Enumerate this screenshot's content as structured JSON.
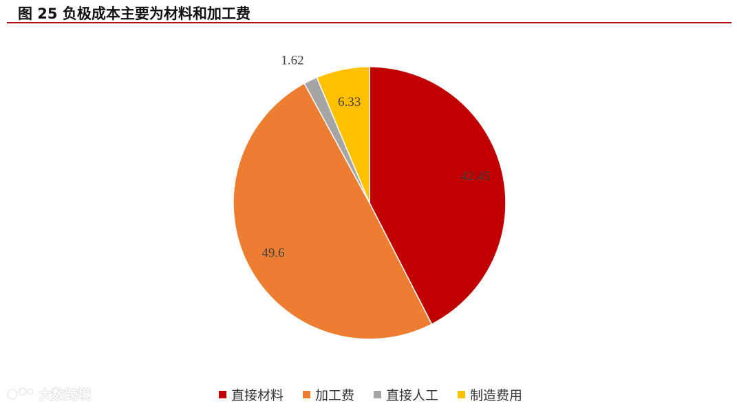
{
  "figure": {
    "title": "图  25 负极成本主要为材料和加工费",
    "rule_color": "#b01016"
  },
  "chart_data": {
    "type": "pie",
    "title": "",
    "start_angle_deg": 0,
    "direction": "clockwise",
    "slices": [
      {
        "name": "直接材料",
        "value": 42.45,
        "label": "42.45",
        "color": "#c00000"
      },
      {
        "name": "加工费",
        "value": 49.6,
        "label": "49.6",
        "color": "#ed7d31"
      },
      {
        "name": "直接人工",
        "value": 1.62,
        "label": "1.62",
        "color": "#a5a5a5"
      },
      {
        "name": "制造费用",
        "value": 6.33,
        "label": "6.33",
        "color": "#ffc000"
      }
    ],
    "legend_position": "bottom"
  },
  "watermark": {
    "text": "大数跨境",
    "logo_icon": "weibo-style-logo-icon"
  }
}
